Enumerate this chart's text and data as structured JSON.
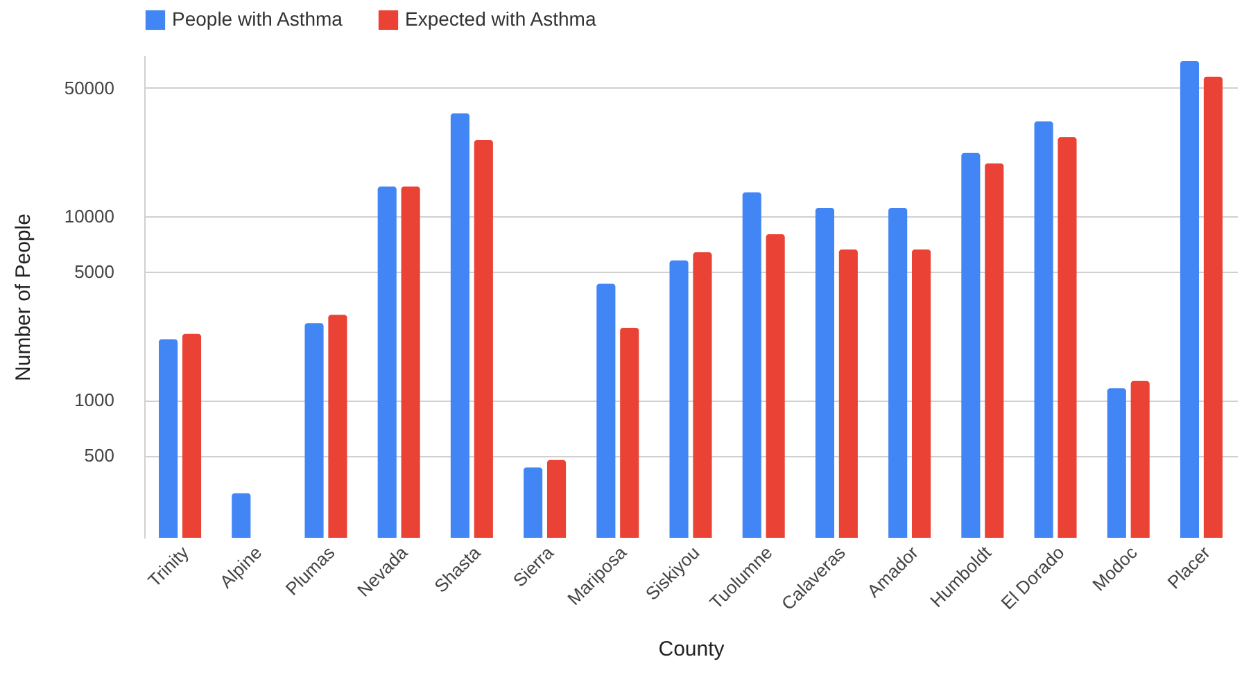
{
  "chart_data": {
    "type": "bar",
    "xlabel": "County",
    "ylabel": "Number of People",
    "categories": [
      "Trinity",
      "Alpine",
      "Plumas",
      "Nevada",
      "Shasta",
      "Sierra",
      "Mariposa",
      "Siskiyou",
      "Tuolumne",
      "Calaveras",
      "Amador",
      "Humboldt",
      "El Dorado",
      "Modoc",
      "Placer"
    ],
    "series": [
      {
        "name": "People with Asthma",
        "color": "#4285f4",
        "values": [
          2140,
          311,
          2620,
          14500,
          36300,
          430,
          4290,
          5750,
          13500,
          11100,
          11100,
          22100,
          32800,
          1160,
          70000
        ]
      },
      {
        "name": "Expected with Asthma",
        "color": "#ea4335",
        "values": [
          2290,
          null,
          2910,
          14500,
          26000,
          472,
          2470,
          6370,
          7980,
          6590,
          6590,
          19400,
          26900,
          1270,
          57400
        ]
      }
    ],
    "log": true,
    "ylim": [
      178,
      75000
    ],
    "yticks": [
      500,
      1000,
      5000,
      10000,
      50000
    ],
    "grid": "y",
    "legend": "top"
  }
}
